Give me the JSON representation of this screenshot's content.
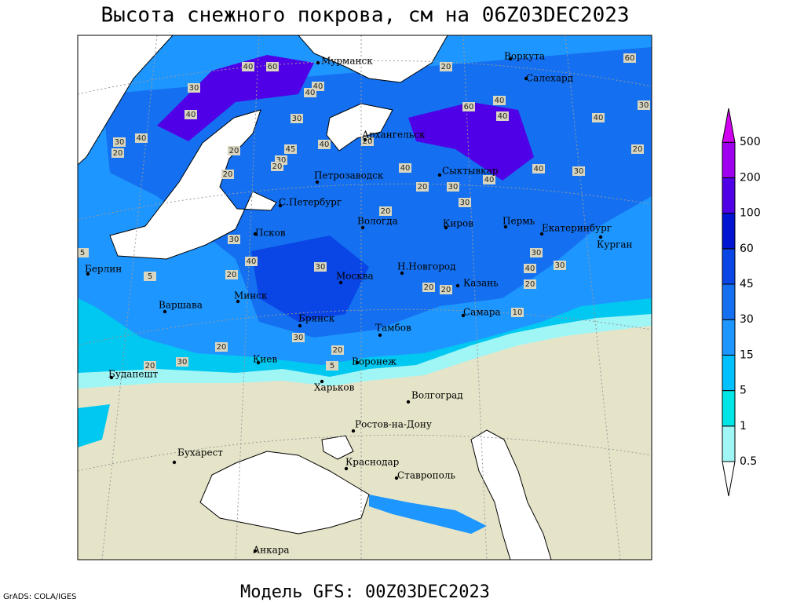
{
  "title": "Высота снежного покрова, см на 06Z03DEC2023",
  "subtitle": "Модель GFS: 00Z03DEC2023",
  "credit": "GrADS: COLA/IGES",
  "map": {
    "cities": [
      "Мурманск",
      "Воркута",
      "Салехард",
      "Архангельск",
      "Петрозаводск",
      "Сыктывкар",
      "С.Петербург",
      "Вологда",
      "Киров",
      "Пермь",
      "Екатеринбург",
      "Курган",
      "Псков",
      "Берлин",
      "Н.Новгород",
      "Москва",
      "Казань",
      "Минск",
      "Варшава",
      "Самара",
      "Брянск",
      "Тамбов",
      "Киев",
      "Воронеж",
      "Будапешт",
      "Харьков",
      "Волгоград",
      "Ростов-на-Дону",
      "Бухарест",
      "Краснодар",
      "Ставрополь",
      "Анкара"
    ],
    "contour_labels": [
      40,
      60,
      40,
      30,
      40,
      40,
      30,
      40,
      30,
      20,
      20,
      45,
      40,
      30,
      20,
      20,
      20,
      40,
      20,
      30,
      40,
      60,
      40,
      40,
      40,
      20,
      40,
      30,
      30,
      60,
      20,
      20,
      30,
      40,
      20,
      30,
      30,
      40,
      30,
      20,
      20,
      20,
      10,
      30,
      20,
      20,
      20,
      30,
      5,
      5,
      5,
      30
    ]
  },
  "legend": {
    "levels": [
      0.5,
      1,
      5,
      15,
      30,
      45,
      60,
      100,
      200,
      500
    ],
    "colors": [
      "#ffffff",
      "#a0f5f5",
      "#00e6e6",
      "#00c0ff",
      "#1e96ff",
      "#1470f0",
      "#0a46e6",
      "#0014d2",
      "#5000e6",
      "#a000f0",
      "#d200f0"
    ]
  }
}
